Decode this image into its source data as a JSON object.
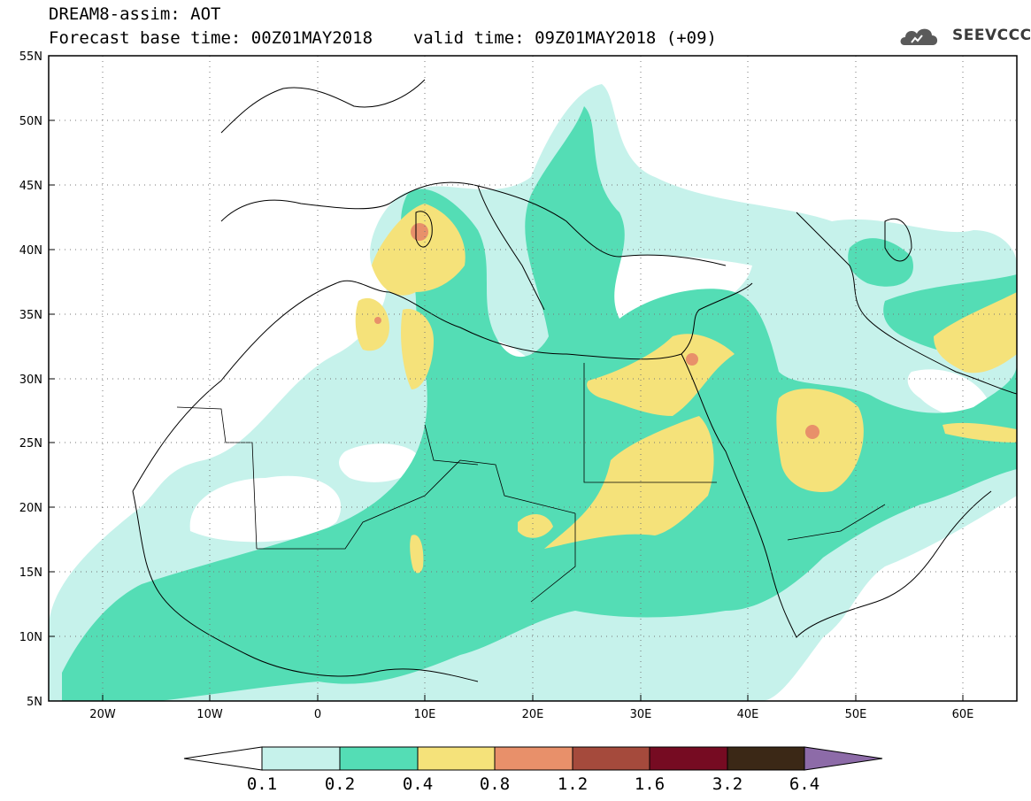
{
  "header": {
    "title": "DREAM8-assim: AOT",
    "base_time_label": "Forecast base time: 00Z01MAY2018",
    "valid_time_label": "valid time: 09Z01MAY2018 (+09)"
  },
  "logo": {
    "text": "SEEVCCC",
    "icon": "cloud-icon"
  },
  "axes": {
    "lat_labels": [
      "55N",
      "50N",
      "45N",
      "40N",
      "35N",
      "30N",
      "25N",
      "20N",
      "15N",
      "10N",
      "5N"
    ],
    "lon_labels": [
      "20W",
      "10W",
      "0",
      "10E",
      "20E",
      "30E",
      "40E",
      "50E",
      "60E"
    ],
    "lat_range": [
      5,
      55
    ],
    "lon_range": [
      -25,
      65
    ],
    "grid": "dotted"
  },
  "colorbar": {
    "labels": [
      "0.1",
      "0.2",
      "0.4",
      "0.8",
      "1.2",
      "1.6",
      "3.2",
      "6.4"
    ],
    "colors": [
      "#ffffff",
      "#c6f2eb",
      "#54ddb5",
      "#f5e27a",
      "#e8906a",
      "#a54a3c",
      "#760b22",
      "#3b2816",
      "#8d6ba8"
    ]
  },
  "colors": {
    "aot_0_1_0_2": "#c6f2eb",
    "aot_0_2_0_4": "#54ddb5",
    "aot_0_4_0_8": "#f5e27a",
    "aot_0_8_1_2": "#e8906a"
  }
}
